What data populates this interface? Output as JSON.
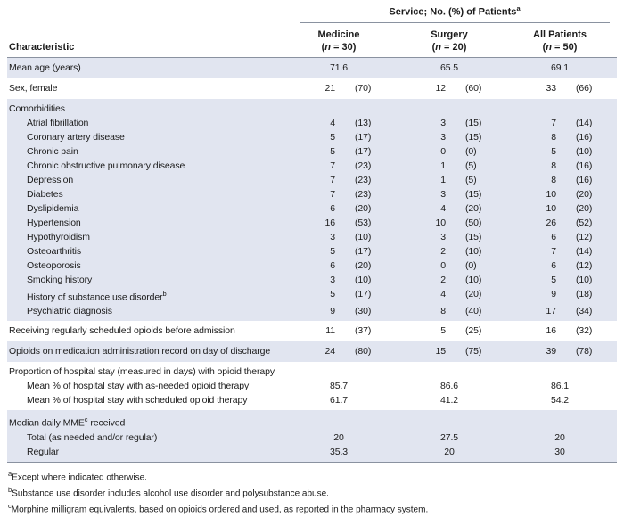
{
  "colors": {
    "row_shade": "#e1e5f0",
    "rule": "#8a92a0",
    "text": "#1b1b1b"
  },
  "table": {
    "spanner": "Service; No. (%) of Patients",
    "spanner_sup": "a",
    "characteristic_header": "Characteristic",
    "columns": [
      {
        "label": "Medicine",
        "n": "30"
      },
      {
        "label": "Surgery",
        "n": "20"
      },
      {
        "label": "All Patients",
        "n": "50"
      }
    ],
    "groups": [
      {
        "shaded": true,
        "single": true,
        "rows": [
          {
            "label": "Mean age (years)",
            "type": "center",
            "values": [
              "71.6",
              "65.5",
              "69.1"
            ]
          }
        ]
      },
      {
        "shaded": false,
        "single": true,
        "rows": [
          {
            "label": "Sex, female",
            "type": "counts",
            "values": [
              "21",
              "(70)",
              "12",
              "(60)",
              "33",
              "(66)"
            ]
          }
        ]
      },
      {
        "shaded": true,
        "single": false,
        "rows": [
          {
            "label": "Comorbidities",
            "type": "header"
          },
          {
            "label": "Atrial fibrillation",
            "indent": true,
            "type": "counts",
            "values": [
              "4",
              "(13)",
              "3",
              "(15)",
              "7",
              "(14)"
            ]
          },
          {
            "label": "Coronary artery disease",
            "indent": true,
            "type": "counts",
            "values": [
              "5",
              "(17)",
              "3",
              "(15)",
              "8",
              "(16)"
            ]
          },
          {
            "label": "Chronic pain",
            "indent": true,
            "type": "counts",
            "values": [
              "5",
              "(17)",
              "0",
              "(0)",
              "5",
              "(10)"
            ]
          },
          {
            "label": "Chronic obstructive pulmonary disease",
            "indent": true,
            "type": "counts",
            "values": [
              "7",
              "(23)",
              "1",
              "(5)",
              "8",
              "(16)"
            ]
          },
          {
            "label": "Depression",
            "indent": true,
            "type": "counts",
            "values": [
              "7",
              "(23)",
              "1",
              "(5)",
              "8",
              "(16)"
            ]
          },
          {
            "label": "Diabetes",
            "indent": true,
            "type": "counts",
            "values": [
              "7",
              "(23)",
              "3",
              "(15)",
              "10",
              "(20)"
            ]
          },
          {
            "label": "Dyslipidemia",
            "indent": true,
            "type": "counts",
            "values": [
              "6",
              "(20)",
              "4",
              "(20)",
              "10",
              "(20)"
            ]
          },
          {
            "label": "Hypertension",
            "indent": true,
            "type": "counts",
            "values": [
              "16",
              "(53)",
              "10",
              "(50)",
              "26",
              "(52)"
            ]
          },
          {
            "label": "Hypothyroidism",
            "indent": true,
            "type": "counts",
            "values": [
              "3",
              "(10)",
              "3",
              "(15)",
              "6",
              "(12)"
            ]
          },
          {
            "label": "Osteoarthritis",
            "indent": true,
            "type": "counts",
            "values": [
              "5",
              "(17)",
              "2",
              "(10)",
              "7",
              "(14)"
            ]
          },
          {
            "label": "Osteoporosis",
            "indent": true,
            "type": "counts",
            "values": [
              "6",
              "(20)",
              "0",
              "(0)",
              "6",
              "(12)"
            ]
          },
          {
            "label": "Smoking history",
            "indent": true,
            "type": "counts",
            "values": [
              "3",
              "(10)",
              "2",
              "(10)",
              "5",
              "(10)"
            ]
          },
          {
            "label": "History of substance use disorder",
            "sup": "b",
            "indent": true,
            "type": "counts",
            "values": [
              "5",
              "(17)",
              "4",
              "(20)",
              "9",
              "(18)"
            ]
          },
          {
            "label": "Psychiatric diagnosis",
            "indent": true,
            "type": "counts",
            "values": [
              "9",
              "(30)",
              "8",
              "(40)",
              "17",
              "(34)"
            ]
          }
        ]
      },
      {
        "shaded": false,
        "single": true,
        "rows": [
          {
            "label": "Receiving regularly scheduled opioids before admission",
            "type": "counts",
            "values": [
              "11",
              "(37)",
              "5",
              "(25)",
              "16",
              "(32)"
            ]
          }
        ]
      },
      {
        "shaded": true,
        "single": true,
        "rows": [
          {
            "label": "Opioids on medication administration record on day of discharge",
            "type": "counts",
            "values": [
              "24",
              "(80)",
              "15",
              "(75)",
              "39",
              "(78)"
            ]
          }
        ]
      },
      {
        "shaded": false,
        "single": false,
        "rows": [
          {
            "label": "Proportion of hospital stay (measured in days) with opioid therapy",
            "type": "header"
          },
          {
            "label": "Mean % of hospital stay with as-needed opioid therapy",
            "indent": true,
            "type": "center",
            "values": [
              "85.7",
              "86.6",
              "86.1"
            ]
          },
          {
            "label": "Mean % of hospital stay with scheduled opioid therapy",
            "indent": true,
            "type": "center",
            "values": [
              "61.7",
              "41.2",
              "54.2"
            ]
          }
        ]
      },
      {
        "shaded": true,
        "single": false,
        "rows": [
          {
            "label": "Median daily MME",
            "sup": "c",
            "label_post": " received",
            "type": "header"
          },
          {
            "label": "Total (as needed and/or regular)",
            "indent": true,
            "type": "center",
            "values": [
              "20",
              "27.5",
              "20"
            ]
          },
          {
            "label": "Regular",
            "indent": true,
            "type": "center",
            "values": [
              "35.3",
              "20",
              "30"
            ]
          }
        ]
      }
    ]
  },
  "footnotes": [
    {
      "marker": "a",
      "text": "Except where indicated otherwise."
    },
    {
      "marker": "b",
      "text": "Substance use disorder includes alcohol use disorder and polysubstance abuse."
    },
    {
      "marker": "c",
      "text": "Morphine milligram equivalents, based on opioids ordered and used, as reported in the pharmacy system."
    }
  ]
}
